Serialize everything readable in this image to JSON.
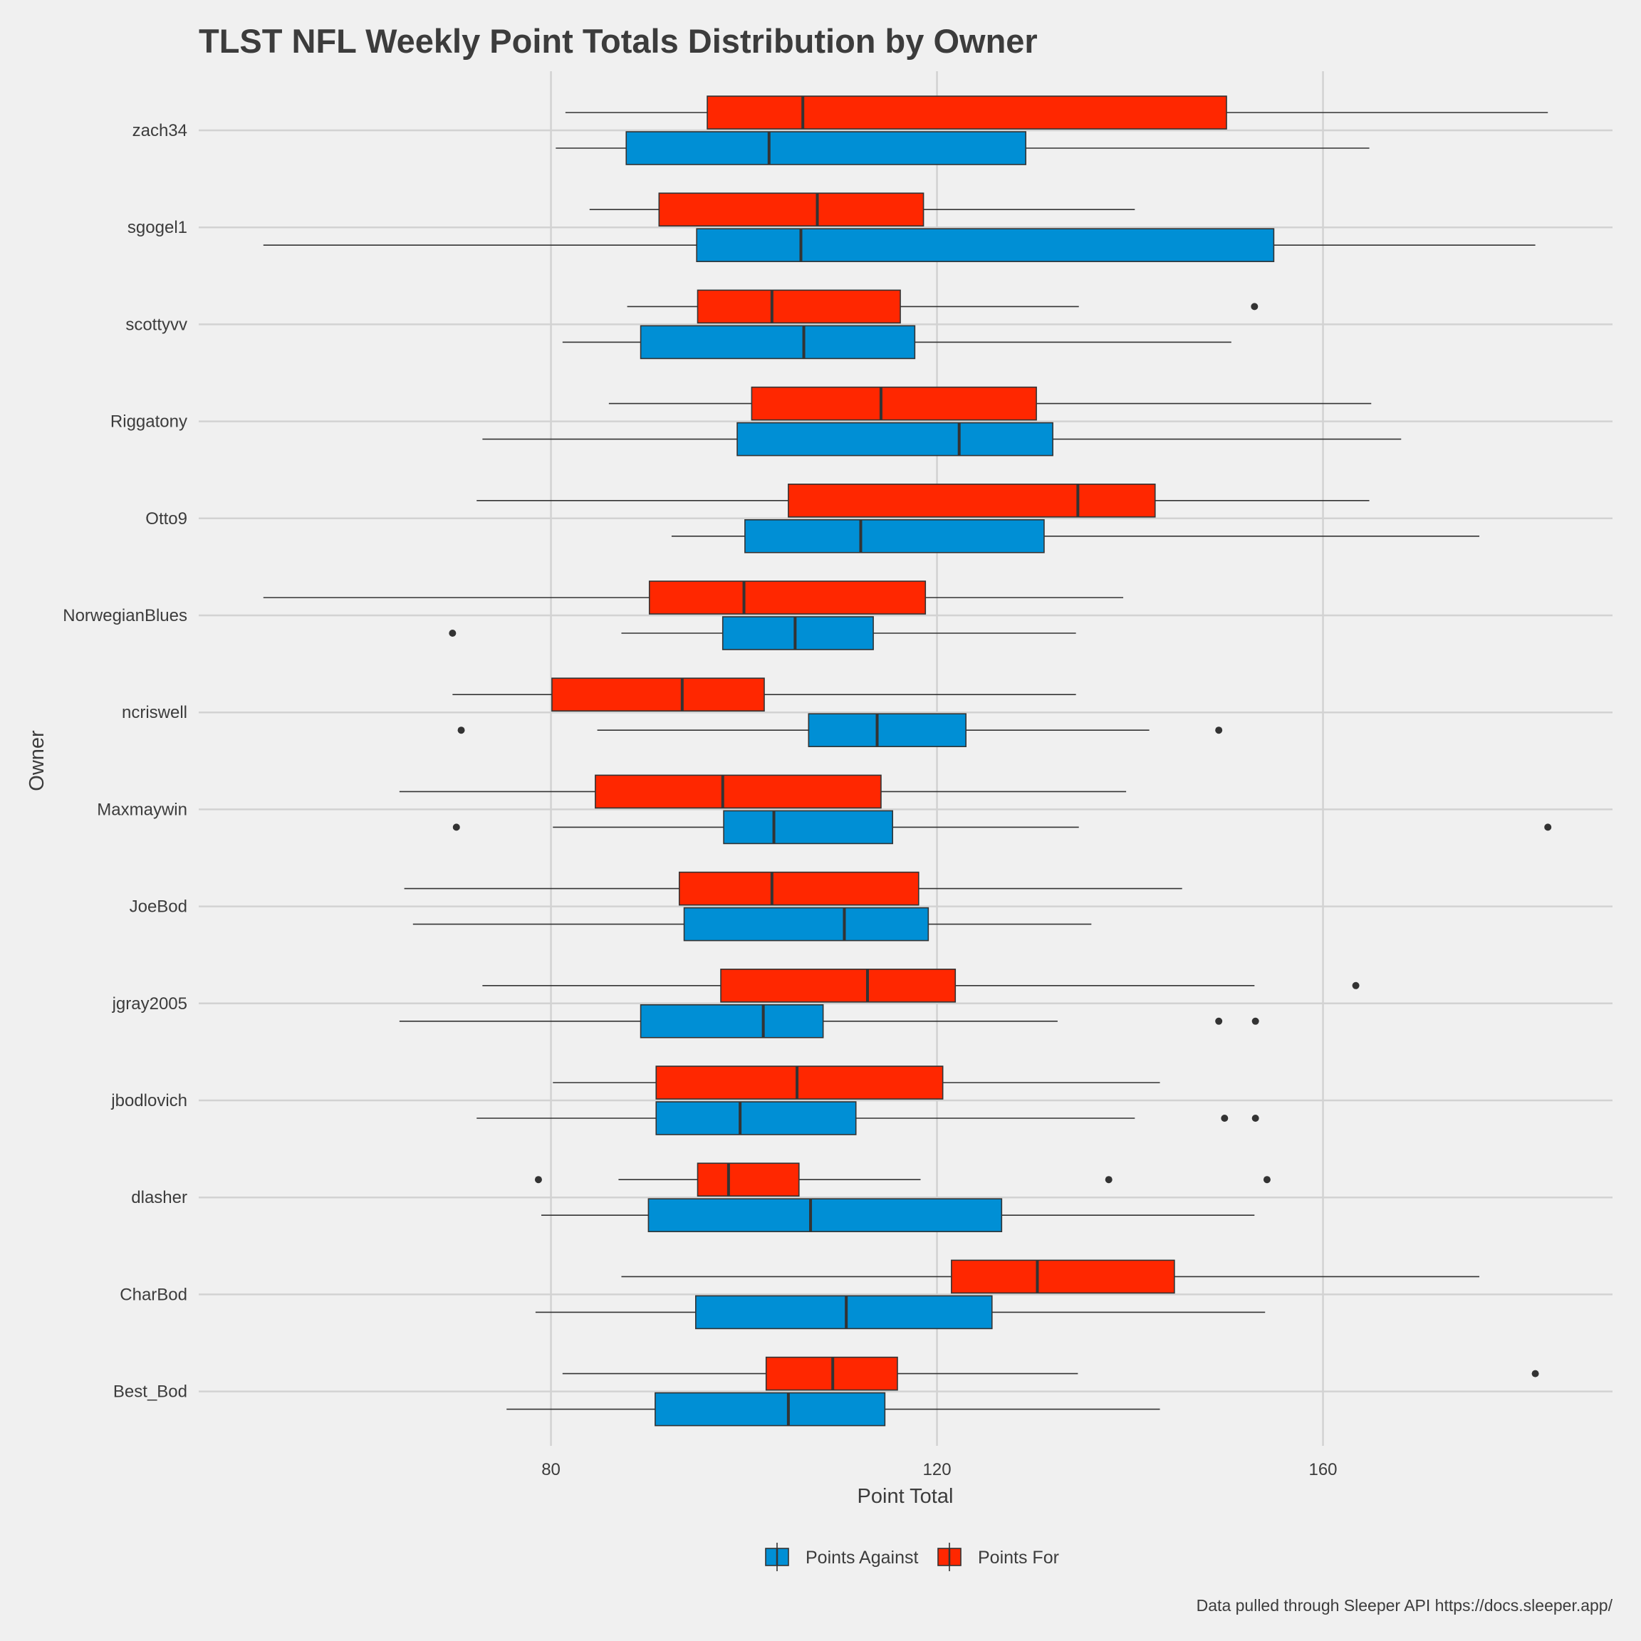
{
  "chart_data": {
    "type": "boxplot",
    "title": "TLST NFL Weekly Point Totals Distribution by Owner",
    "xlabel": "Point Total",
    "ylabel": "Owner",
    "xlim": [
      43.5,
      190
    ],
    "x_ticks": [
      80,
      120,
      160
    ],
    "grid": true,
    "legend_position": "bottom",
    "caption": "Data pulled through Sleeper API https://docs.sleeper.app/",
    "series": [
      {
        "name": "Points Against",
        "color": "#008fd5"
      },
      {
        "name": "Points For",
        "color": "#ff2700"
      }
    ],
    "owners": [
      {
        "name": "zach34",
        "points_for": {
          "lower_whisker": 81.5,
          "q1": 96.2,
          "median": 106.1,
          "q3": 150.0,
          "upper_whisker": 183.3,
          "outliers": []
        },
        "points_against": {
          "lower_whisker": 80.5,
          "q1": 87.8,
          "median": 102.6,
          "q3": 129.2,
          "upper_whisker": 164.8,
          "outliers": []
        }
      },
      {
        "name": "sgogel1",
        "points_for": {
          "lower_whisker": 84.0,
          "q1": 91.2,
          "median": 107.6,
          "q3": 118.6,
          "upper_whisker": 140.5,
          "outliers": []
        },
        "points_against": {
          "lower_whisker": 50.2,
          "q1": 95.1,
          "median": 105.9,
          "q3": 154.9,
          "upper_whisker": 182.0,
          "outliers": []
        }
      },
      {
        "name": "scottyvv",
        "points_for": {
          "lower_whisker": 87.9,
          "q1": 95.2,
          "median": 102.9,
          "q3": 116.2,
          "upper_whisker": 134.7,
          "outliers": [
            152.9
          ]
        },
        "points_against": {
          "lower_whisker": 81.2,
          "q1": 89.3,
          "median": 106.2,
          "q3": 117.7,
          "upper_whisker": 150.5,
          "outliers": []
        }
      },
      {
        "name": "Riggatony",
        "points_for": {
          "lower_whisker": 86.0,
          "q1": 100.8,
          "median": 114.2,
          "q3": 130.3,
          "upper_whisker": 165.0,
          "outliers": []
        },
        "points_against": {
          "lower_whisker": 72.9,
          "q1": 99.3,
          "median": 122.3,
          "q3": 132.0,
          "upper_whisker": 168.1,
          "outliers": []
        }
      },
      {
        "name": "Otto9",
        "points_for": {
          "lower_whisker": 72.3,
          "q1": 104.6,
          "median": 134.6,
          "q3": 142.6,
          "upper_whisker": 164.8,
          "outliers": []
        },
        "points_against": {
          "lower_whisker": 92.5,
          "q1": 100.1,
          "median": 112.1,
          "q3": 131.1,
          "upper_whisker": 176.2,
          "outliers": []
        }
      },
      {
        "name": "NorwegianBlues",
        "points_for": {
          "lower_whisker": 50.2,
          "q1": 90.2,
          "median": 100.0,
          "q3": 118.8,
          "upper_whisker": 139.3,
          "outliers": []
        },
        "points_against": {
          "lower_whisker": 87.3,
          "q1": 97.8,
          "median": 105.3,
          "q3": 113.4,
          "upper_whisker": 134.4,
          "outliers": [
            69.8
          ]
        }
      },
      {
        "name": "ncriswell",
        "points_for": {
          "lower_whisker": 69.8,
          "q1": 80.1,
          "median": 93.6,
          "q3": 102.1,
          "upper_whisker": 134.4,
          "outliers": []
        },
        "points_against": {
          "lower_whisker": 84.8,
          "q1": 106.7,
          "median": 113.8,
          "q3": 123.0,
          "upper_whisker": 142.0,
          "outliers": [
            70.7,
            149.2
          ]
        }
      },
      {
        "name": "Maxmaywin",
        "points_for": {
          "lower_whisker": 64.3,
          "q1": 84.6,
          "median": 97.8,
          "q3": 114.2,
          "upper_whisker": 139.6,
          "outliers": []
        },
        "points_against": {
          "lower_whisker": 80.2,
          "q1": 97.9,
          "median": 103.1,
          "q3": 115.4,
          "upper_whisker": 134.7,
          "outliers": [
            70.2,
            183.3
          ]
        }
      },
      {
        "name": "JoeBod",
        "points_for": {
          "lower_whisker": 64.8,
          "q1": 93.3,
          "median": 102.9,
          "q3": 118.1,
          "upper_whisker": 145.4,
          "outliers": []
        },
        "points_against": {
          "lower_whisker": 65.7,
          "q1": 93.8,
          "median": 110.4,
          "q3": 119.1,
          "upper_whisker": 136.0,
          "outliers": []
        }
      },
      {
        "name": "jgray2005",
        "points_for": {
          "lower_whisker": 72.9,
          "q1": 97.6,
          "median": 112.8,
          "q3": 121.9,
          "upper_whisker": 152.9,
          "outliers": [
            163.4
          ]
        },
        "points_against": {
          "lower_whisker": 64.3,
          "q1": 89.3,
          "median": 102.0,
          "q3": 108.2,
          "upper_whisker": 132.5,
          "outliers": [
            149.2,
            153.0
          ]
        }
      },
      {
        "name": "jbodlovich",
        "points_for": {
          "lower_whisker": 80.2,
          "q1": 90.9,
          "median": 105.5,
          "q3": 120.6,
          "upper_whisker": 143.1,
          "outliers": []
        },
        "points_against": {
          "lower_whisker": 72.3,
          "q1": 90.9,
          "median": 99.6,
          "q3": 111.6,
          "upper_whisker": 140.5,
          "outliers": [
            149.8,
            153.0
          ]
        }
      },
      {
        "name": "dlasher",
        "points_for": {
          "lower_whisker": 87.0,
          "q1": 95.2,
          "median": 98.4,
          "q3": 105.7,
          "upper_whisker": 118.3,
          "outliers": [
            78.7,
            137.8,
            154.2
          ]
        },
        "points_against": {
          "lower_whisker": 79.0,
          "q1": 90.1,
          "median": 106.9,
          "q3": 126.7,
          "upper_whisker": 152.9,
          "outliers": []
        }
      },
      {
        "name": "CharBod",
        "points_for": {
          "lower_whisker": 87.3,
          "q1": 121.5,
          "median": 130.4,
          "q3": 144.6,
          "upper_whisker": 176.2,
          "outliers": []
        },
        "points_against": {
          "lower_whisker": 78.4,
          "q1": 95.0,
          "median": 110.6,
          "q3": 125.7,
          "upper_whisker": 154.0,
          "outliers": []
        }
      },
      {
        "name": "Best_Bod",
        "points_for": {
          "lower_whisker": 81.2,
          "q1": 102.3,
          "median": 109.2,
          "q3": 115.9,
          "upper_whisker": 134.6,
          "outliers": [
            182.0
          ]
        },
        "points_against": {
          "lower_whisker": 75.4,
          "q1": 90.8,
          "median": 104.6,
          "q3": 114.6,
          "upper_whisker": 143.1,
          "outliers": []
        }
      }
    ]
  }
}
